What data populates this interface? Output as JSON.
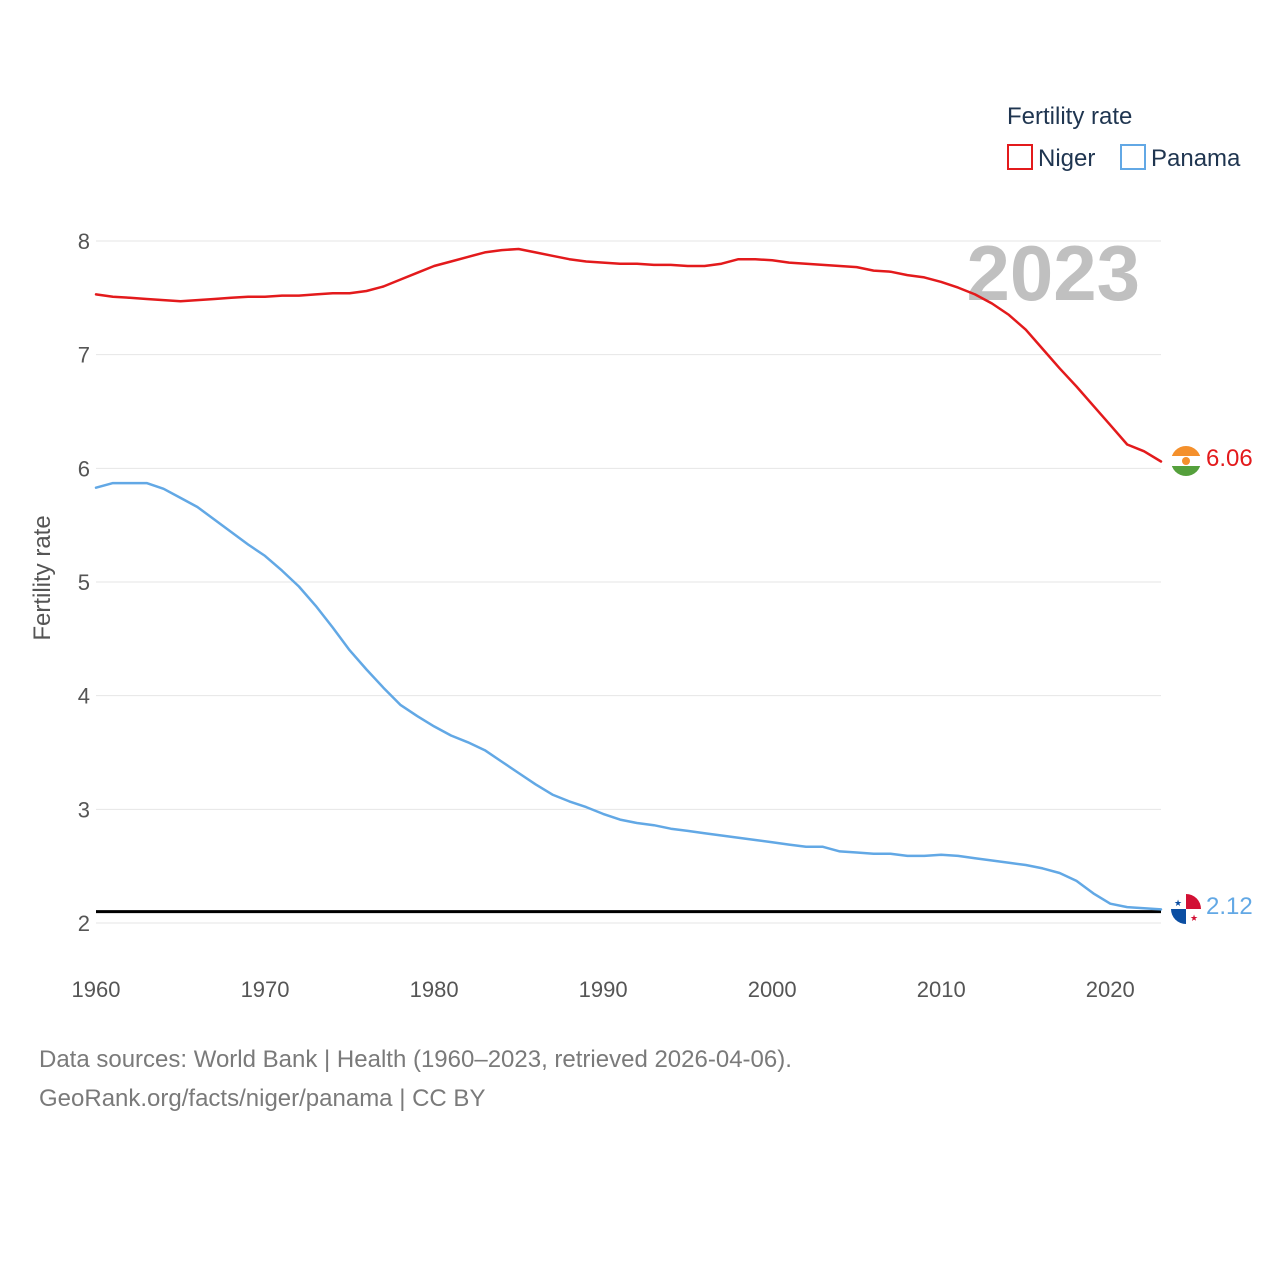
{
  "chart_data": {
    "type": "line",
    "ylabel": "Fertility rate",
    "xlabel": "",
    "year_label": "2023",
    "xlim": [
      1960,
      2023
    ],
    "ylim": [
      2,
      8
    ],
    "x_ticks": [
      1960,
      1970,
      1980,
      1990,
      2000,
      2010,
      2020
    ],
    "y_ticks": [
      2,
      3,
      4,
      5,
      6,
      7,
      8
    ],
    "grid": true,
    "reference_line": {
      "y": 2.1,
      "color": "#000000"
    },
    "legend": {
      "title": "Fertility rate",
      "placement": "top-right",
      "entries": [
        {
          "name": "Niger",
          "color": "#e31a1c"
        },
        {
          "name": "Panama",
          "color": "#62a8e5"
        }
      ]
    },
    "x": [
      1960,
      1961,
      1962,
      1963,
      1964,
      1965,
      1966,
      1967,
      1968,
      1969,
      1970,
      1971,
      1972,
      1973,
      1974,
      1975,
      1976,
      1977,
      1978,
      1979,
      1980,
      1981,
      1982,
      1983,
      1984,
      1985,
      1986,
      1987,
      1988,
      1989,
      1990,
      1991,
      1992,
      1993,
      1994,
      1995,
      1996,
      1997,
      1998,
      1999,
      2000,
      2001,
      2002,
      2003,
      2004,
      2005,
      2006,
      2007,
      2008,
      2009,
      2010,
      2011,
      2012,
      2013,
      2014,
      2015,
      2016,
      2017,
      2018,
      2019,
      2020,
      2021,
      2022,
      2023
    ],
    "series": [
      {
        "name": "Niger",
        "color": "#e31a1c",
        "end_label": "6.06",
        "values": [
          7.53,
          7.51,
          7.5,
          7.49,
          7.48,
          7.47,
          7.48,
          7.49,
          7.5,
          7.51,
          7.51,
          7.52,
          7.52,
          7.53,
          7.54,
          7.54,
          7.56,
          7.6,
          7.66,
          7.72,
          7.78,
          7.82,
          7.86,
          7.9,
          7.92,
          7.93,
          7.9,
          7.87,
          7.84,
          7.82,
          7.81,
          7.8,
          7.8,
          7.79,
          7.79,
          7.78,
          7.78,
          7.8,
          7.84,
          7.84,
          7.83,
          7.81,
          7.8,
          7.79,
          7.78,
          7.77,
          7.74,
          7.73,
          7.7,
          7.68,
          7.64,
          7.59,
          7.53,
          7.45,
          7.35,
          7.22,
          7.05,
          6.88,
          6.72,
          6.55,
          6.38,
          6.21,
          6.15,
          6.06
        ]
      },
      {
        "name": "Panama",
        "color": "#62a8e5",
        "end_label": "2.12",
        "values": [
          5.83,
          5.87,
          5.87,
          5.87,
          5.82,
          5.74,
          5.66,
          5.55,
          5.44,
          5.33,
          5.23,
          5.1,
          4.96,
          4.79,
          4.6,
          4.4,
          4.23,
          4.07,
          3.92,
          3.82,
          3.73,
          3.65,
          3.59,
          3.52,
          3.42,
          3.32,
          3.22,
          3.13,
          3.07,
          3.02,
          2.96,
          2.91,
          2.88,
          2.86,
          2.83,
          2.81,
          2.79,
          2.77,
          2.75,
          2.73,
          2.71,
          2.69,
          2.67,
          2.67,
          2.63,
          2.62,
          2.61,
          2.61,
          2.59,
          2.59,
          2.6,
          2.59,
          2.57,
          2.55,
          2.53,
          2.51,
          2.48,
          2.44,
          2.37,
          2.26,
          2.17,
          2.14,
          2.13,
          2.12
        ]
      }
    ]
  },
  "footer": {
    "line1": "Data sources: World Bank | Health (1960–2023, retrieved 2026-04-06).",
    "line2": "GeoRank.org/facts/niger/panama | CC BY"
  }
}
